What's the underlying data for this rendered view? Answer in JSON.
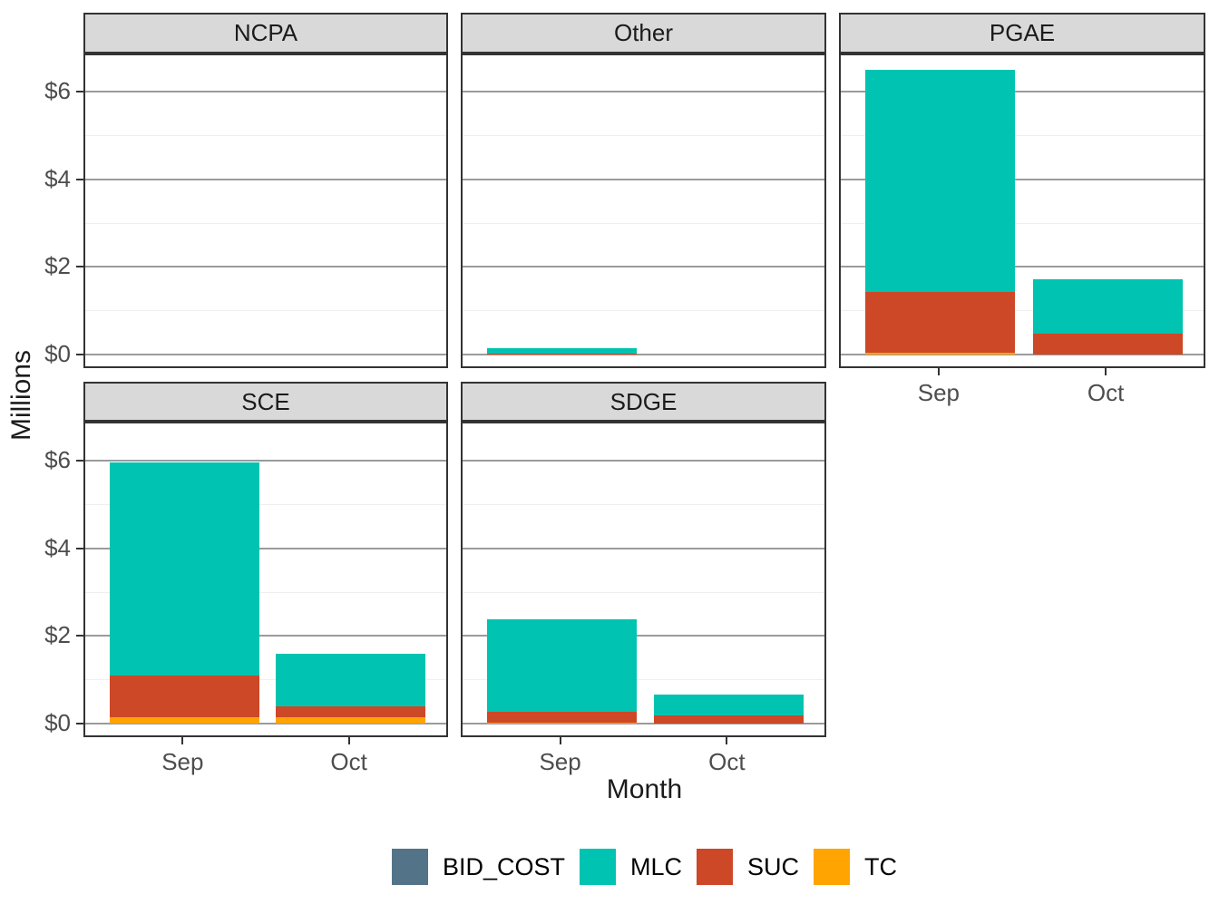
{
  "axes": {
    "x_title": "Month",
    "y_title": "Millions"
  },
  "chart_data": {
    "type": "bar",
    "stacked": true,
    "title": "",
    "xlabel": "Month",
    "ylabel": "Millions",
    "x_categories": [
      "Sep",
      "Oct"
    ],
    "y_ticks": [
      {
        "value": 0,
        "label": "$0"
      },
      {
        "value": 2,
        "label": "$2"
      },
      {
        "value": 4,
        "label": "$4"
      },
      {
        "value": 6,
        "label": "$6"
      }
    ],
    "y_minor_ticks": [
      1,
      3,
      5
    ],
    "ylim": [
      0,
      6.8
    ],
    "grid": "major-and-minor-horizontal",
    "legend_position": "bottom",
    "legend": [
      {
        "name": "BID_COST",
        "color": "#537389"
      },
      {
        "name": "MLC",
        "color": "#00C3B1"
      },
      {
        "name": "SUC",
        "color": "#CC4827"
      },
      {
        "name": "TC",
        "color": "#FFA400"
      }
    ],
    "stack_order_bottom_to_top": [
      "TC",
      "SUC",
      "MLC",
      "BID_COST"
    ],
    "facets": [
      {
        "name": "NCPA",
        "row": 0,
        "col": 0,
        "x_axis": false,
        "series": {
          "BID_COST": [
            0,
            0
          ],
          "MLC": [
            0,
            0
          ],
          "SUC": [
            0,
            0
          ],
          "TC": [
            0,
            0
          ]
        }
      },
      {
        "name": "Other",
        "row": 0,
        "col": 1,
        "x_axis": false,
        "series": {
          "BID_COST": [
            0,
            0
          ],
          "MLC": [
            0.13,
            0
          ],
          "SUC": [
            0.02,
            0
          ],
          "TC": [
            0,
            0
          ]
        }
      },
      {
        "name": "PGAE",
        "row": 0,
        "col": 2,
        "x_axis": true,
        "series": {
          "BID_COST": [
            0,
            0
          ],
          "MLC": [
            5.07,
            1.25
          ],
          "SUC": [
            1.39,
            0.47
          ],
          "TC": [
            0.04,
            0
          ]
        }
      },
      {
        "name": "SCE",
        "row": 1,
        "col": 0,
        "x_axis": true,
        "series": {
          "BID_COST": [
            0,
            0
          ],
          "MLC": [
            4.86,
            1.21
          ],
          "SUC": [
            0.95,
            0.24
          ],
          "TC": [
            0.15,
            0.15
          ]
        }
      },
      {
        "name": "SDGE",
        "row": 1,
        "col": 1,
        "x_axis": true,
        "series": {
          "BID_COST": [
            0,
            0
          ],
          "MLC": [
            2.12,
            0.48
          ],
          "SUC": [
            0.24,
            0.18
          ],
          "TC": [
            0.02,
            0
          ]
        }
      }
    ]
  }
}
